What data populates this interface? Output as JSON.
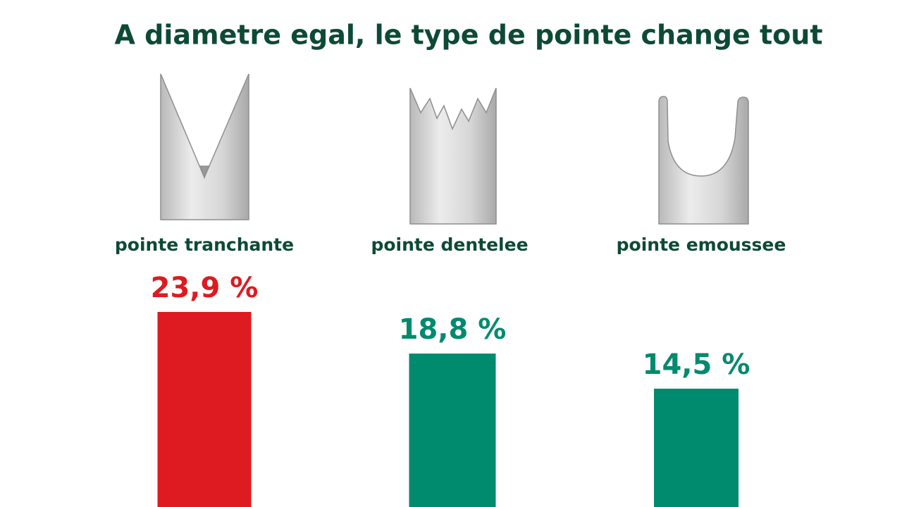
{
  "chart_data": {
    "type": "bar",
    "title": "A diametre egal, le type de pointe change tout",
    "categories": [
      "pointe tranchante",
      "pointe dentelee",
      "pointe emoussee"
    ],
    "values": [
      23.9,
      18.8,
      14.5
    ],
    "value_labels": [
      "23,9 %",
      "18,8 %",
      "14,5 %"
    ],
    "colors": [
      "#dd1b20",
      "#008a6e",
      "#008a6e"
    ]
  }
}
